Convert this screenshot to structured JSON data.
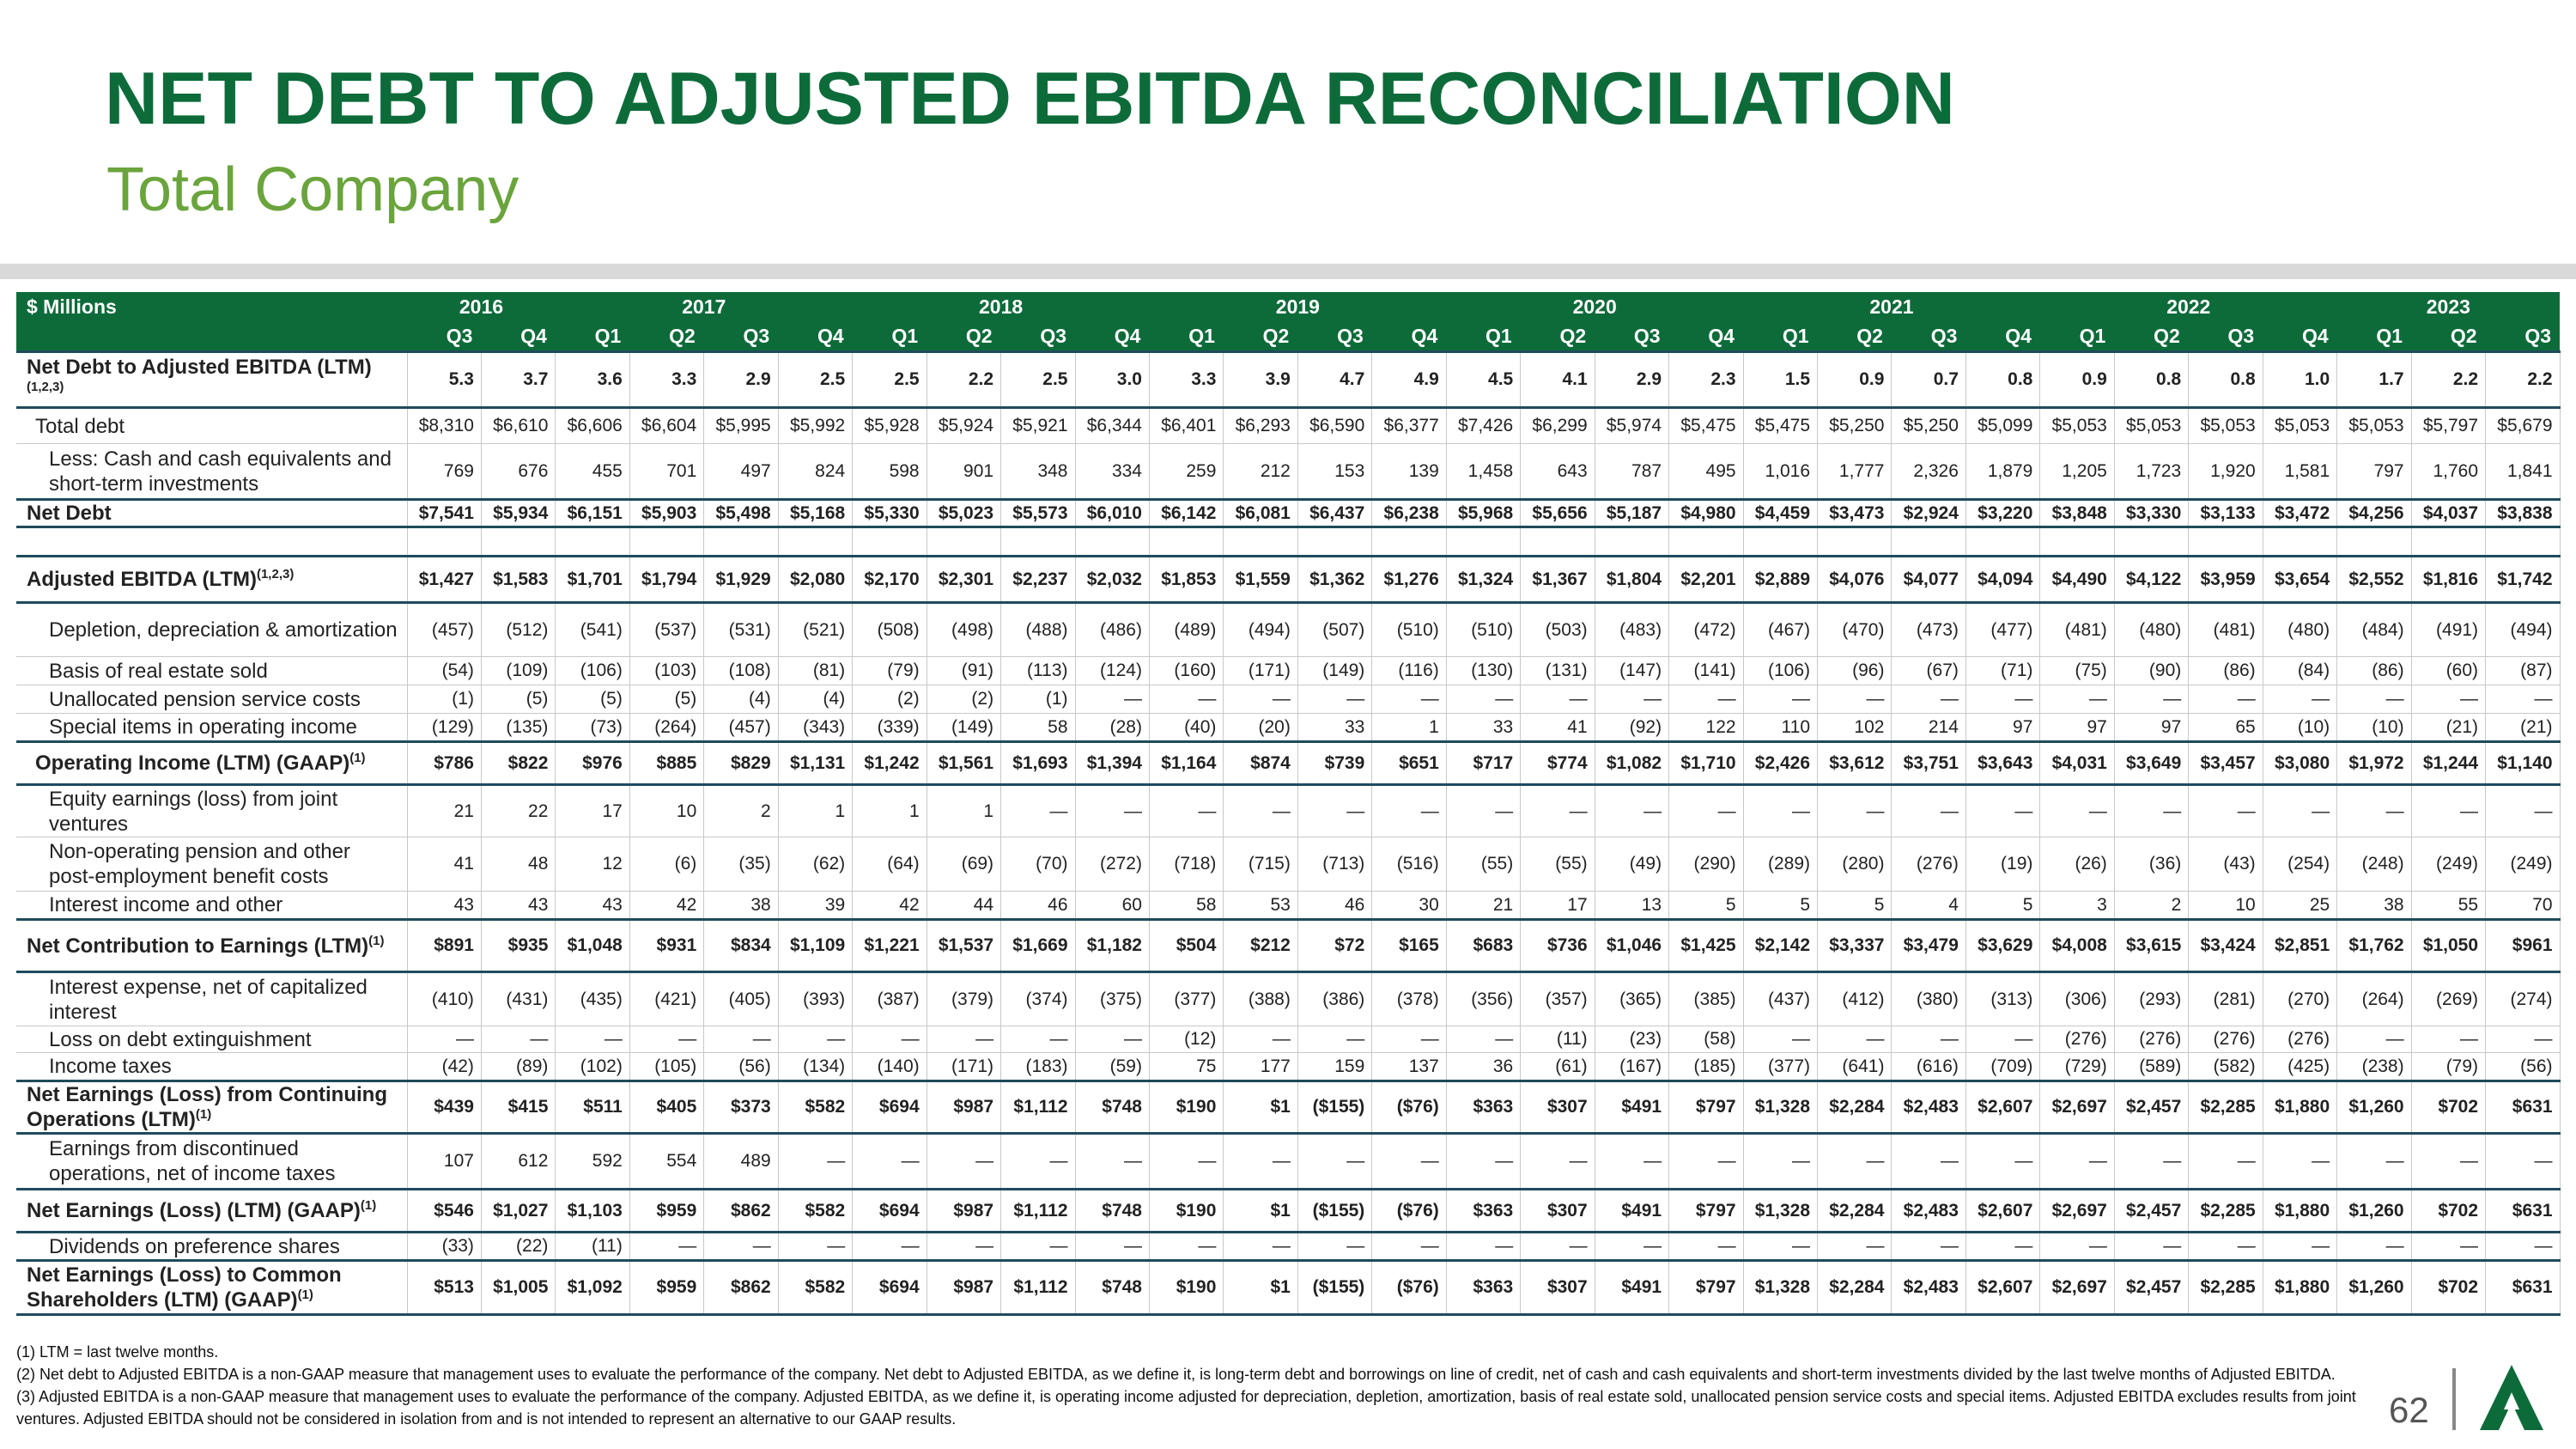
{
  "title": "NET DEBT TO ADJUSTED EBITDA RECONCILIATION",
  "subtitle": "Total Company",
  "table": {
    "corner": "$ Millions",
    "years": [
      {
        "year": "2016",
        "quarters": [
          "Q3",
          "Q4"
        ]
      },
      {
        "year": "2017",
        "quarters": [
          "Q1",
          "Q2",
          "Q3",
          "Q4"
        ]
      },
      {
        "year": "2018",
        "quarters": [
          "Q1",
          "Q2",
          "Q3",
          "Q4"
        ]
      },
      {
        "year": "2019",
        "quarters": [
          "Q1",
          "Q2",
          "Q3",
          "Q4"
        ]
      },
      {
        "year": "2020",
        "quarters": [
          "Q1",
          "Q2",
          "Q3",
          "Q4"
        ]
      },
      {
        "year": "2021",
        "quarters": [
          "Q1",
          "Q2",
          "Q3",
          "Q4"
        ]
      },
      {
        "year": "2022",
        "quarters": [
          "Q1",
          "Q2",
          "Q3",
          "Q4"
        ]
      },
      {
        "year": "2023",
        "quarters": [
          "Q1",
          "Q2",
          "Q3"
        ]
      }
    ],
    "rows": [
      {
        "label": "Net Debt to Adjusted EBITDA (LTM)",
        "note": "(1,2,3)",
        "values": [
          "5.3",
          "3.7",
          "3.6",
          "3.3",
          "2.9",
          "2.5",
          "2.5",
          "2.2",
          "2.5",
          "3.0",
          "3.3",
          "3.9",
          "4.7",
          "4.9",
          "4.5",
          "4.1",
          "2.9",
          "2.3",
          "1.5",
          "0.9",
          "0.7",
          "0.8",
          "0.9",
          "0.8",
          "0.8",
          "1.0",
          "1.7",
          "2.2",
          "2.2"
        ]
      },
      {
        "label": "Total debt",
        "values": [
          "$8,310",
          "$6,610",
          "$6,606",
          "$6,604",
          "$5,995",
          "$5,992",
          "$5,928",
          "$5,924",
          "$5,921",
          "$6,344",
          "$6,401",
          "$6,293",
          "$6,590",
          "$6,377",
          "$7,426",
          "$6,299",
          "$5,974",
          "$5,475",
          "$5,475",
          "$5,250",
          "$5,250",
          "$5,099",
          "$5,053",
          "$5,053",
          "$5,053",
          "$5,053",
          "$5,053",
          "$5,797",
          "$5,679"
        ]
      },
      {
        "label": "Less: Cash and cash equivalents and short-term investments",
        "values": [
          "769",
          "676",
          "455",
          "701",
          "497",
          "824",
          "598",
          "901",
          "348",
          "334",
          "259",
          "212",
          "153",
          "139",
          "1,458",
          "643",
          "787",
          "495",
          "1,016",
          "1,777",
          "2,326",
          "1,879",
          "1,205",
          "1,723",
          "1,920",
          "1,581",
          "797",
          "1,760",
          "1,841"
        ]
      },
      {
        "label": "Net Debt",
        "values": [
          "$7,541",
          "$5,934",
          "$6,151",
          "$5,903",
          "$5,498",
          "$5,168",
          "$5,330",
          "$5,023",
          "$5,573",
          "$6,010",
          "$6,142",
          "$6,081",
          "$6,437",
          "$6,238",
          "$5,968",
          "$5,656",
          "$5,187",
          "$4,980",
          "$4,459",
          "$3,473",
          "$2,924",
          "$3,220",
          "$3,848",
          "$3,330",
          "$3,133",
          "$3,472",
          "$4,256",
          "$4,037",
          "$3,838"
        ]
      },
      {
        "label": "Adjusted EBITDA (LTM)",
        "note": "(1,2,3)",
        "values": [
          "$1,427",
          "$1,583",
          "$1,701",
          "$1,794",
          "$1,929",
          "$2,080",
          "$2,170",
          "$2,301",
          "$2,237",
          "$2,032",
          "$1,853",
          "$1,559",
          "$1,362",
          "$1,276",
          "$1,324",
          "$1,367",
          "$1,804",
          "$2,201",
          "$2,889",
          "$4,076",
          "$4,077",
          "$4,094",
          "$4,490",
          "$4,122",
          "$3,959",
          "$3,654",
          "$2,552",
          "$1,816",
          "$1,742"
        ]
      },
      {
        "label": "Depletion, depreciation & amortization",
        "values": [
          "(457)",
          "(512)",
          "(541)",
          "(537)",
          "(531)",
          "(521)",
          "(508)",
          "(498)",
          "(488)",
          "(486)",
          "(489)",
          "(494)",
          "(507)",
          "(510)",
          "(510)",
          "(503)",
          "(483)",
          "(472)",
          "(467)",
          "(470)",
          "(473)",
          "(477)",
          "(481)",
          "(480)",
          "(481)",
          "(480)",
          "(484)",
          "(491)",
          "(494)"
        ]
      },
      {
        "label": "Basis of real estate sold",
        "values": [
          "(54)",
          "(109)",
          "(106)",
          "(103)",
          "(108)",
          "(81)",
          "(79)",
          "(91)",
          "(113)",
          "(124)",
          "(160)",
          "(171)",
          "(149)",
          "(116)",
          "(130)",
          "(131)",
          "(147)",
          "(141)",
          "(106)",
          "(96)",
          "(67)",
          "(71)",
          "(75)",
          "(90)",
          "(86)",
          "(84)",
          "(86)",
          "(60)",
          "(87)"
        ]
      },
      {
        "label": "Unallocated pension service costs",
        "values": [
          "(1)",
          "(5)",
          "(5)",
          "(5)",
          "(4)",
          "(4)",
          "(2)",
          "(2)",
          "(1)",
          "—",
          "—",
          "—",
          "—",
          "—",
          "—",
          "—",
          "—",
          "—",
          "—",
          "—",
          "—",
          "—",
          "—",
          "—",
          "—",
          "—",
          "—",
          "—",
          "—"
        ]
      },
      {
        "label": "Special items in operating income",
        "values": [
          "(129)",
          "(135)",
          "(73)",
          "(264)",
          "(457)",
          "(343)",
          "(339)",
          "(149)",
          "58",
          "(28)",
          "(40)",
          "(20)",
          "33",
          "1",
          "33",
          "41",
          "(92)",
          "122",
          "110",
          "102",
          "214",
          "97",
          "97",
          "97",
          "65",
          "(10)",
          "(10)",
          "(21)",
          "(21)"
        ]
      },
      {
        "label": "Operating Income (LTM) (GAAP)",
        "note": "(1)",
        "values": [
          "$786",
          "$822",
          "$976",
          "$885",
          "$829",
          "$1,131",
          "$1,242",
          "$1,561",
          "$1,693",
          "$1,394",
          "$1,164",
          "$874",
          "$739",
          "$651",
          "$717",
          "$774",
          "$1,082",
          "$1,710",
          "$2,426",
          "$3,612",
          "$3,751",
          "$3,643",
          "$4,031",
          "$3,649",
          "$3,457",
          "$3,080",
          "$1,972",
          "$1,244",
          "$1,140"
        ]
      },
      {
        "label": "Equity earnings (loss) from joint ventures",
        "values": [
          "21",
          "22",
          "17",
          "10",
          "2",
          "1",
          "1",
          "1",
          "—",
          "—",
          "—",
          "—",
          "—",
          "—",
          "—",
          "—",
          "—",
          "—",
          "—",
          "—",
          "—",
          "—",
          "—",
          "—",
          "—",
          "—",
          "—",
          "—",
          "—"
        ]
      },
      {
        "label": "Non-operating pension and other post-employment benefit costs",
        "values": [
          "41",
          "48",
          "12",
          "(6)",
          "(35)",
          "(62)",
          "(64)",
          "(69)",
          "(70)",
          "(272)",
          "(718)",
          "(715)",
          "(713)",
          "(516)",
          "(55)",
          "(55)",
          "(49)",
          "(290)",
          "(289)",
          "(280)",
          "(276)",
          "(19)",
          "(26)",
          "(36)",
          "(43)",
          "(254)",
          "(248)",
          "(249)",
          "(249)"
        ]
      },
      {
        "label": "Interest income and other",
        "values": [
          "43",
          "43",
          "43",
          "42",
          "38",
          "39",
          "42",
          "44",
          "46",
          "60",
          "58",
          "53",
          "46",
          "30",
          "21",
          "17",
          "13",
          "5",
          "5",
          "5",
          "4",
          "5",
          "3",
          "2",
          "10",
          "25",
          "38",
          "55",
          "70"
        ]
      },
      {
        "label": "Net Contribution to Earnings (LTM)",
        "note": "(1)",
        "values": [
          "$891",
          "$935",
          "$1,048",
          "$931",
          "$834",
          "$1,109",
          "$1,221",
          "$1,537",
          "$1,669",
          "$1,182",
          "$504",
          "$212",
          "$72",
          "$165",
          "$683",
          "$736",
          "$1,046",
          "$1,425",
          "$2,142",
          "$3,337",
          "$3,479",
          "$3,629",
          "$4,008",
          "$3,615",
          "$3,424",
          "$2,851",
          "$1,762",
          "$1,050",
          "$961"
        ]
      },
      {
        "label": "Interest expense, net of capitalized interest",
        "values": [
          "(410)",
          "(431)",
          "(435)",
          "(421)",
          "(405)",
          "(393)",
          "(387)",
          "(379)",
          "(374)",
          "(375)",
          "(377)",
          "(388)",
          "(386)",
          "(378)",
          "(356)",
          "(357)",
          "(365)",
          "(385)",
          "(437)",
          "(412)",
          "(380)",
          "(313)",
          "(306)",
          "(293)",
          "(281)",
          "(270)",
          "(264)",
          "(269)",
          "(274)"
        ]
      },
      {
        "label": "Loss on debt extinguishment",
        "values": [
          "—",
          "—",
          "—",
          "—",
          "—",
          "—",
          "—",
          "—",
          "—",
          "—",
          "(12)",
          "—",
          "—",
          "—",
          "—",
          "(11)",
          "(23)",
          "(58)",
          "—",
          "—",
          "—",
          "—",
          "(276)",
          "(276)",
          "(276)",
          "(276)",
          "—",
          "—",
          "—"
        ]
      },
      {
        "label": "Income taxes",
        "values": [
          "(42)",
          "(89)",
          "(102)",
          "(105)",
          "(56)",
          "(134)",
          "(140)",
          "(171)",
          "(183)",
          "(59)",
          "75",
          "177",
          "159",
          "137",
          "36",
          "(61)",
          "(167)",
          "(185)",
          "(377)",
          "(641)",
          "(616)",
          "(709)",
          "(729)",
          "(589)",
          "(582)",
          "(425)",
          "(238)",
          "(79)",
          "(56)"
        ]
      },
      {
        "label": "Net Earnings (Loss) from Continuing Operations (LTM)",
        "note": "(1)",
        "values": [
          "$439",
          "$415",
          "$511",
          "$405",
          "$373",
          "$582",
          "$694",
          "$987",
          "$1,112",
          "$748",
          "$190",
          "$1",
          "($155)",
          "($76)",
          "$363",
          "$307",
          "$491",
          "$797",
          "$1,328",
          "$2,284",
          "$2,483",
          "$2,607",
          "$2,697",
          "$2,457",
          "$2,285",
          "$1,880",
          "$1,260",
          "$702",
          "$631"
        ]
      },
      {
        "label": "Earnings from discontinued operations, net of income taxes",
        "values": [
          "107",
          "612",
          "592",
          "554",
          "489",
          "—",
          "—",
          "—",
          "—",
          "—",
          "—",
          "—",
          "—",
          "—",
          "—",
          "—",
          "—",
          "—",
          "—",
          "—",
          "—",
          "—",
          "—",
          "—",
          "—",
          "—",
          "—",
          "—",
          "—"
        ]
      },
      {
        "label": "Net Earnings (Loss) (LTM) (GAAP)",
        "note": "(1)",
        "values": [
          "$546",
          "$1,027",
          "$1,103",
          "$959",
          "$862",
          "$582",
          "$694",
          "$987",
          "$1,112",
          "$748",
          "$190",
          "$1",
          "($155)",
          "($76)",
          "$363",
          "$307",
          "$491",
          "$797",
          "$1,328",
          "$2,284",
          "$2,483",
          "$2,607",
          "$2,697",
          "$2,457",
          "$2,285",
          "$1,880",
          "$1,260",
          "$702",
          "$631"
        ]
      },
      {
        "label": "Dividends on preference shares",
        "values": [
          "(33)",
          "(22)",
          "(11)",
          "—",
          "—",
          "—",
          "—",
          "—",
          "—",
          "—",
          "—",
          "—",
          "—",
          "—",
          "—",
          "—",
          "—",
          "—",
          "—",
          "—",
          "—",
          "—",
          "—",
          "—",
          "—",
          "—",
          "—",
          "—",
          "—"
        ]
      },
      {
        "label": "Net Earnings (Loss) to Common Shareholders (LTM) (GAAP)",
        "note": "(1)",
        "values": [
          "$513",
          "$1,005",
          "$1,092",
          "$959",
          "$862",
          "$582",
          "$694",
          "$987",
          "$1,112",
          "$748",
          "$190",
          "$1",
          "($155)",
          "($76)",
          "$363",
          "$307",
          "$491",
          "$797",
          "$1,328",
          "$2,284",
          "$2,483",
          "$2,607",
          "$2,697",
          "$2,457",
          "$2,285",
          "$1,880",
          "$1,260",
          "$702",
          "$631"
        ]
      }
    ]
  },
  "footnotes": [
    "(1) LTM = last twelve months.",
    "(2) Net debt to Adjusted EBITDA is a non-GAAP measure that management uses to evaluate the performance of the company. Net debt to Adjusted EBITDA, as we define it, is long-term debt and borrowings on line of credit, net of cash and cash equivalents and short-term investments divided by the last twelve months of Adjusted EBITDA.",
    "(3) Adjusted EBITDA is a non-GAAP measure that management uses to evaluate the performance of the company. Adjusted EBITDA, as we define it, is operating income adjusted for depreciation, depletion, amortization, basis of real estate sold, unallocated pension service costs and special items. Adjusted EBITDA excludes results from joint ventures. Adjusted EBITDA should not be considered in isolation from and is not intended to represent an alternative to our GAAP results."
  ],
  "page_number": "62"
}
